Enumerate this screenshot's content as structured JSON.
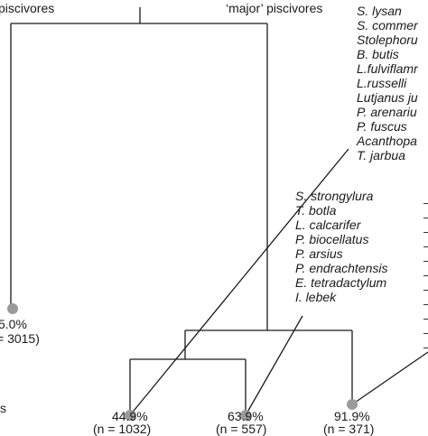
{
  "headers": {
    "minor": "piscivores",
    "major": "‘major’ piscivores"
  },
  "species_top": [
    "S. lysan",
    "S. commer",
    "Stolephoru",
    "B. butis",
    "L.fulviflamr",
    "L.russelli",
    "Lutjanus ju",
    "P. arenariu",
    "P. fuscus",
    "Acanthopa",
    "T. jarbua"
  ],
  "species_mid": [
    "S. strongylura",
    "T. botla",
    "L. calcarifer",
    "P. biocellatus",
    "P. arsius",
    "P. endrachtensis",
    "E. tetradactylum",
    "I.  lebek"
  ],
  "nodes": [
    {
      "pct": "5.0%",
      "n": "= 3015)"
    },
    {
      "pct": "44.9%",
      "n": "(n = 1032)"
    },
    {
      "pct": "63.9%",
      "n": "(n = 557)"
    },
    {
      "pct": "91.9%",
      "n": "(n = 371)"
    }
  ],
  "edge_fragment": "s",
  "colors": {
    "line": "#1a1a1a",
    "node": "#9a9a9a"
  }
}
